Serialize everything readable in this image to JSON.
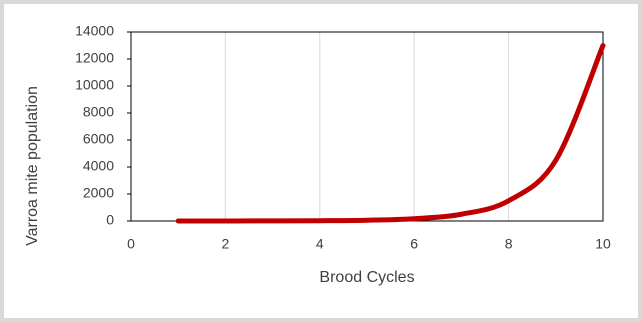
{
  "chart_data": {
    "type": "line",
    "x_label": "Brood Cycles",
    "y_label": "Varroa mite population",
    "x": [
      1,
      2,
      3,
      4,
      5,
      6,
      7,
      8,
      9,
      10
    ],
    "series": [
      {
        "name": "Varroa mite population",
        "color": "#c00000",
        "values": [
          1,
          3,
          8,
          22,
          60,
          170,
          500,
          1500,
          4500,
          13000
        ]
      }
    ],
    "xlim": [
      0,
      10
    ],
    "xticks": [
      0,
      2,
      4,
      6,
      8,
      10
    ],
    "ylim": [
      0,
      14000
    ],
    "yticks": [
      0,
      2000,
      4000,
      6000,
      8000,
      10000,
      12000,
      14000
    ],
    "grid": true
  }
}
